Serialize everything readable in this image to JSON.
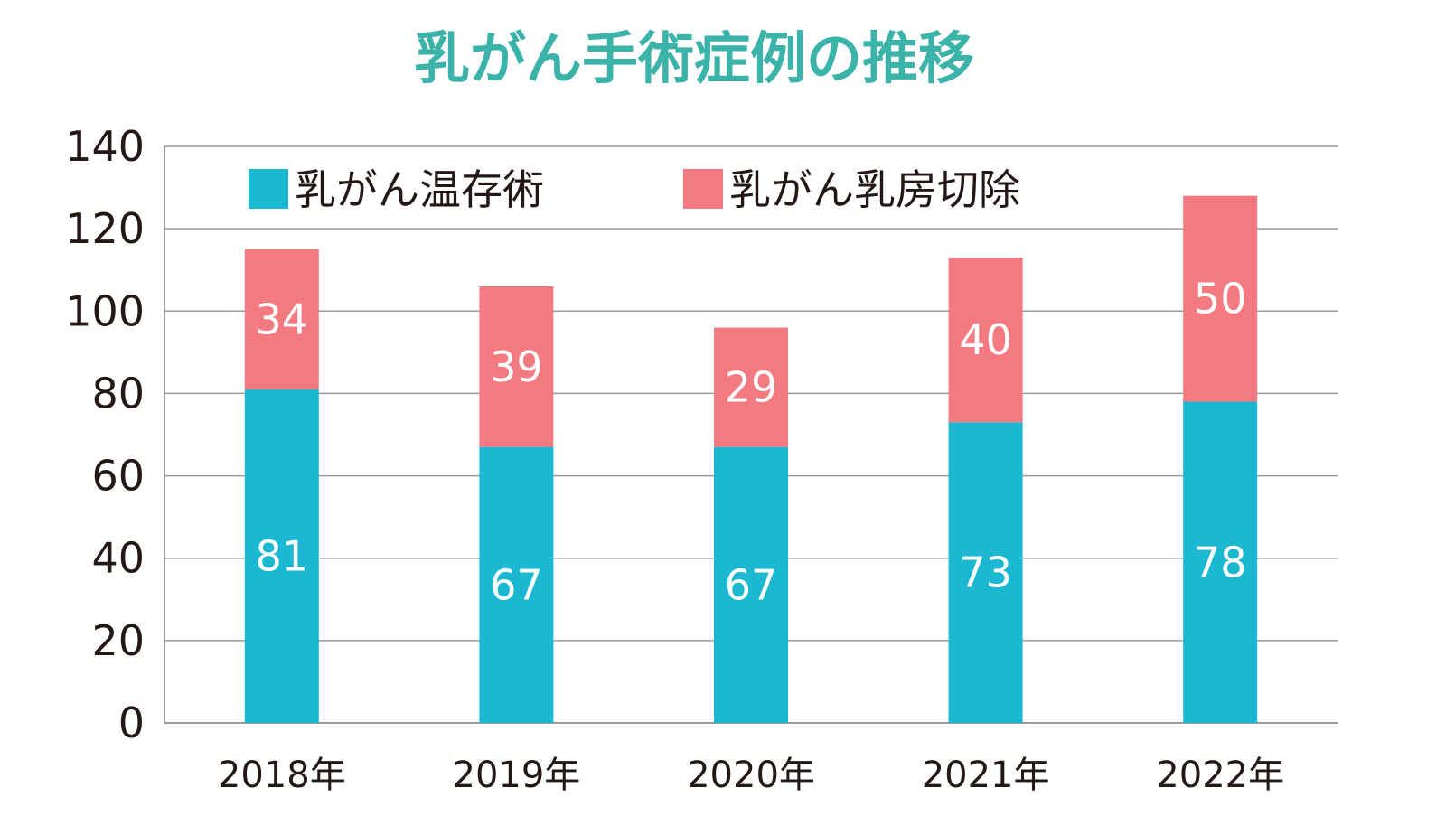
{
  "chart_data": {
    "type": "bar",
    "stacked": true,
    "title": "乳がん手術症例の推移",
    "categories": [
      "2018年",
      "2019年",
      "2020年",
      "2021年",
      "2022年"
    ],
    "series": [
      {
        "name": "乳がん温存術",
        "values": [
          81,
          67,
          67,
          73,
          78
        ],
        "color": "#1cb8d2"
      },
      {
        "name": "乳がん乳房切除",
        "values": [
          34,
          39,
          29,
          40,
          50
        ],
        "color": "#f47a82"
      }
    ],
    "ylim": [
      0,
      140
    ],
    "yticks": [
      "0",
      "20",
      "40",
      "60",
      "80",
      "100",
      "120",
      "140"
    ],
    "ytick_values": [
      0,
      20,
      40,
      60,
      80,
      100,
      120,
      140
    ],
    "grid": true,
    "legend_position": "top-left",
    "title_color": "#3bb3a9",
    "grid_color": "#9a9a9a",
    "text_color": "#231815"
  }
}
